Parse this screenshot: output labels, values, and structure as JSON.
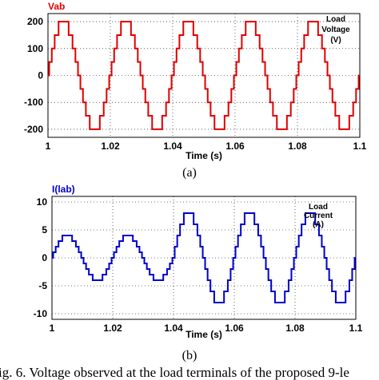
{
  "chart_data": [
    {
      "type": "line",
      "title": "Vab",
      "subtitle": "(a)",
      "xlabel": "Time (s)",
      "ylabel": "",
      "annotation": [
        "Load",
        "Voltage",
        "(V)"
      ],
      "xlim": [
        1.0,
        1.1
      ],
      "ylim": [
        -230,
        230
      ],
      "xticks": [
        "1",
        "1.02",
        "1.04",
        "1.06",
        "1.08",
        "1.1"
      ],
      "xtick_values": [
        1.0,
        1.02,
        1.04,
        1.06,
        1.08,
        1.1
      ],
      "yticks": [
        "200",
        "100",
        "0",
        "-100",
        "-200"
      ],
      "ytick_values": [
        200,
        100,
        0,
        -100,
        -200
      ],
      "grid": true,
      "series": [
        {
          "color": "#e00000",
          "kind": "9-level staircase sine",
          "frequency_hz": 50,
          "amplitude": 200,
          "step": 50,
          "phase_deg": 0,
          "x_start": 1.0,
          "x_end": 1.1
        }
      ]
    },
    {
      "type": "line",
      "title": "I(lab)",
      "subtitle": "(b)",
      "xlabel": "Time (s)",
      "ylabel": "",
      "annotation": [
        "Load",
        "Current",
        "(A)"
      ],
      "xlim": [
        1.0,
        1.1
      ],
      "ylim": [
        -11,
        11
      ],
      "xticks": [
        "1",
        "1.02",
        "1.04",
        "1.06",
        "1.08",
        "1.1"
      ],
      "xtick_values": [
        1.0,
        1.02,
        1.04,
        1.06,
        1.08,
        1.1
      ],
      "yticks": [
        "10",
        "5",
        "0",
        "-5",
        "-10"
      ],
      "ytick_values": [
        10,
        5,
        0,
        -5,
        -10
      ],
      "grid": true,
      "series": [
        {
          "color": "#0000cc",
          "kind": "staircase sine",
          "frequency_hz": 50,
          "phase_deg": 0,
          "x_start": 1.0,
          "x_end": 1.1,
          "segments": [
            {
              "x_from": 1.0,
              "x_to": 1.04,
              "amplitude": 4
            },
            {
              "x_from": 1.04,
              "x_to": 1.1,
              "amplitude": 8
            }
          ]
        }
      ]
    }
  ],
  "caption": "ig. 6.  Voltage observed at the load terminals of the proposed 9-le"
}
